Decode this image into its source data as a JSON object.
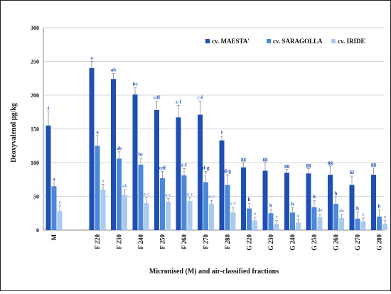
{
  "chart_data": {
    "type": "bar",
    "xlabel": "Micronised (M) and air-classified fractions",
    "ylabel": "Deoxyvalenol µg/kg",
    "ylim": [
      0,
      300
    ],
    "yticks": [
      0,
      50,
      100,
      150,
      200,
      250,
      300
    ],
    "grid": true,
    "legend_position": "top-right",
    "categories": [
      "M",
      "F 220",
      "F 230",
      "F 240",
      "F 250",
      "F 260",
      "F 270",
      "F 280",
      "G 220",
      "G 230",
      "G 240",
      "G 250",
      "G 260",
      "G 270",
      "G 280"
    ],
    "series": [
      {
        "name": "cv. MAESTA'",
        "color": "#1f4fb4",
        "values": [
          155,
          240,
          224,
          201,
          178,
          167,
          171,
          133,
          93,
          88,
          85,
          84,
          82,
          67,
          82
        ],
        "errors": [
          20,
          10,
          8,
          10,
          13,
          18,
          20,
          6,
          7,
          12,
          5,
          7,
          13,
          13,
          10
        ],
        "labels": [
          "f",
          "a",
          "ab",
          "bc",
          "cdf",
          "c-f",
          "c-f",
          "f",
          "gg",
          "gg",
          "gg",
          "gg",
          "gg",
          "hf",
          "gg"
        ]
      },
      {
        "name": "cv. SARAGOLLA",
        "color": "#4c88d8",
        "values": [
          65,
          125,
          106,
          97,
          77,
          81,
          71,
          67,
          32,
          25,
          26,
          34,
          39,
          17,
          20
        ],
        "errors": [
          5,
          15,
          10,
          10,
          10,
          10,
          16,
          15,
          8,
          6,
          7,
          10,
          10,
          10,
          10
        ],
        "labels": [
          "a",
          "a",
          "ab",
          "bc",
          "cdf",
          "c-f",
          "d-g",
          "d-g",
          "h",
          "h",
          "h",
          "h",
          "h",
          "h",
          "h"
        ]
      },
      {
        "name": "cv. IRIDE",
        "color": "#a9c9ef",
        "values": [
          28,
          60,
          52,
          40,
          42,
          43,
          39,
          26,
          14,
          9,
          11,
          19,
          18,
          13,
          9
        ],
        "errors": [
          8,
          8,
          8,
          8,
          5,
          5,
          5,
          8,
          5,
          5,
          5,
          5,
          5,
          5,
          5
        ],
        "labels": [
          "e",
          "a",
          "ab",
          "a-c",
          "a-c",
          "a-c",
          "a-c",
          "c-f",
          "e",
          "e",
          "e",
          "de",
          "de",
          "e",
          "e"
        ]
      }
    ]
  }
}
